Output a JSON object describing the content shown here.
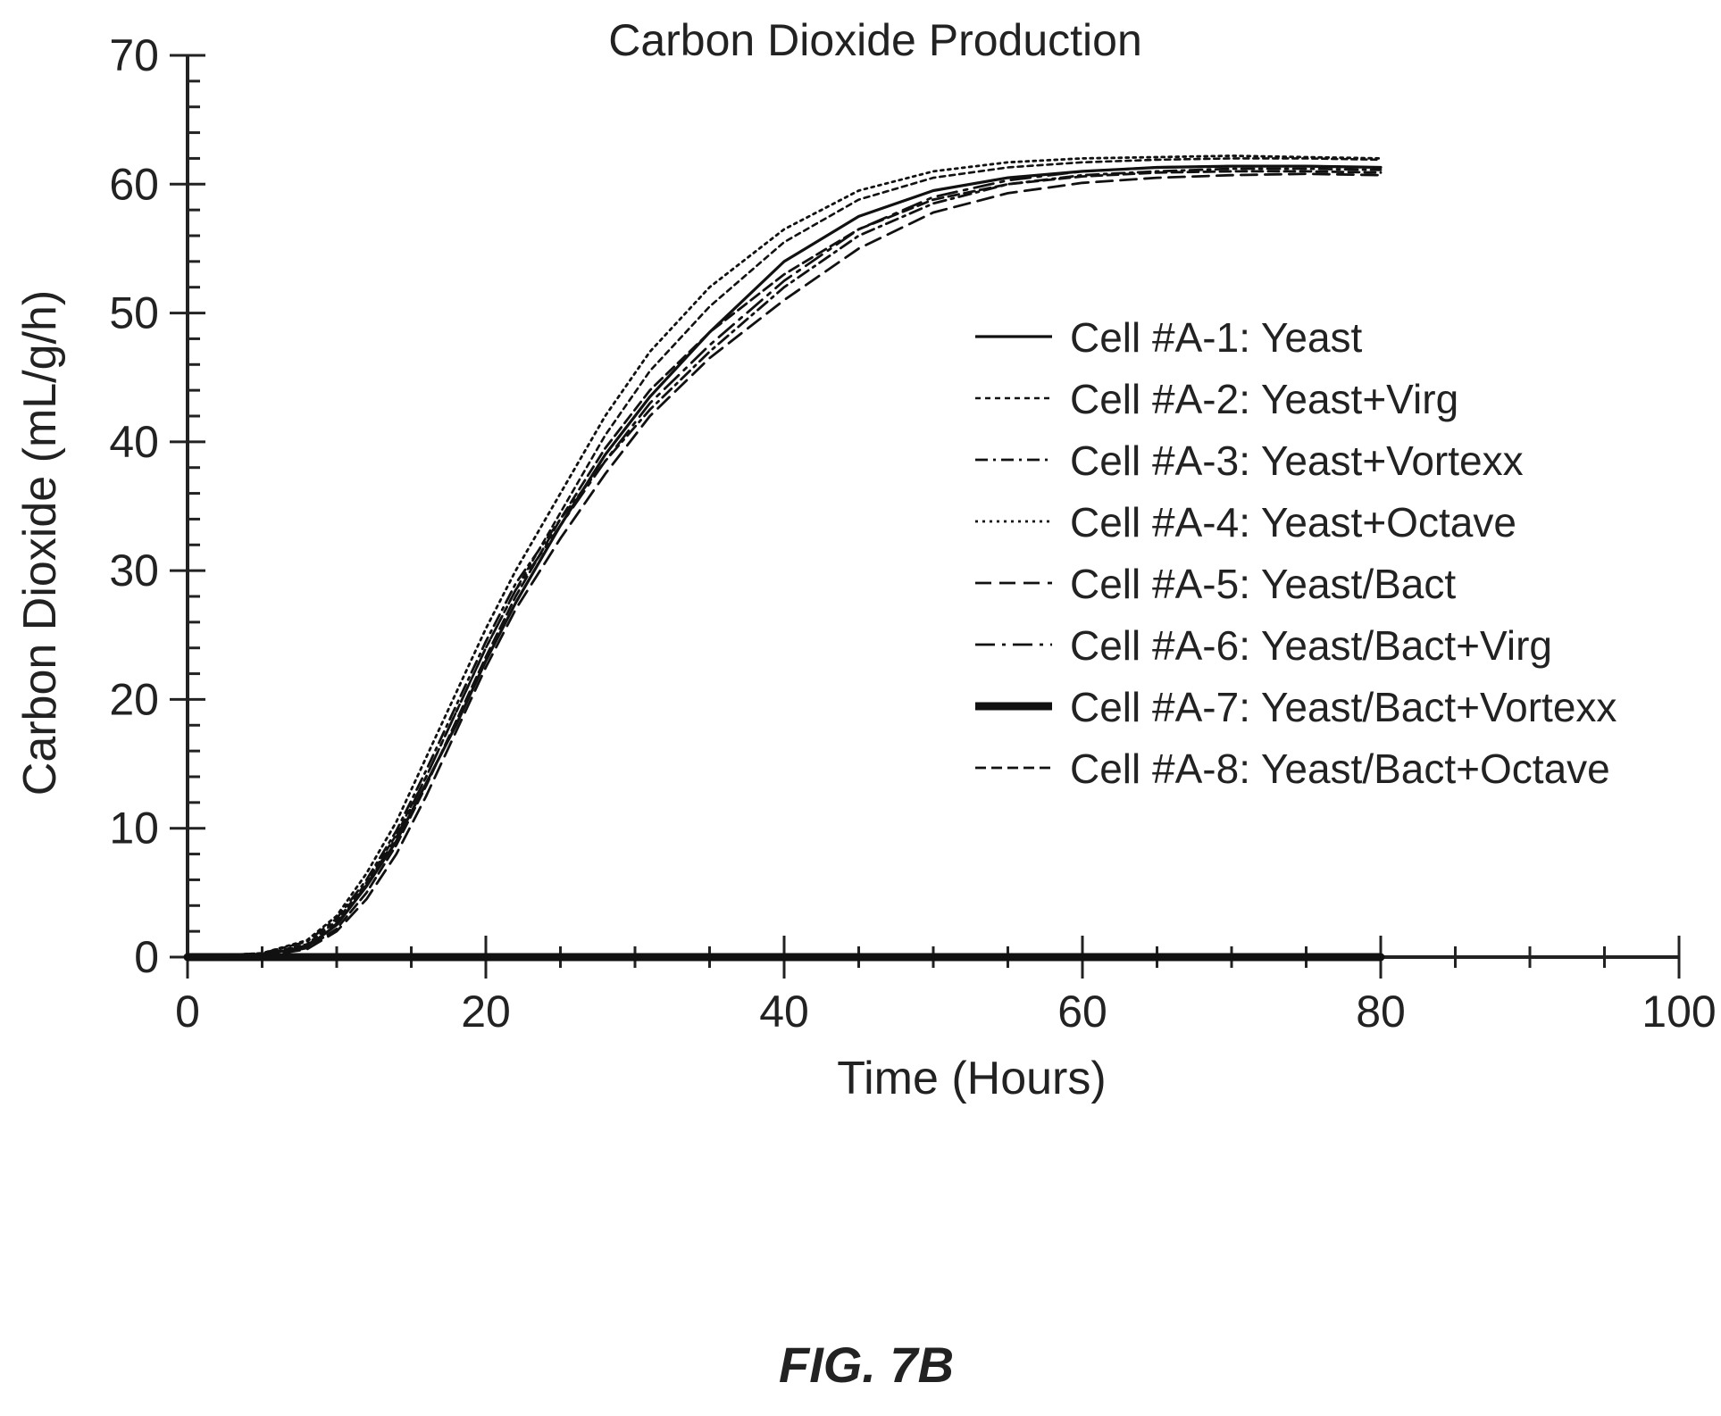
{
  "figure_label": "FIG. 7B",
  "chart_data": {
    "type": "line",
    "title": "Carbon Dioxide Production",
    "xlabel": "Time (Hours)",
    "ylabel": "Carbon Dioxide (mL/g/h)",
    "xlim": [
      0,
      100
    ],
    "ylim": [
      0,
      70
    ],
    "x_ticks": [
      "0",
      "20",
      "40",
      "60",
      "80",
      "100"
    ],
    "y_ticks": [
      "0",
      "10",
      "20",
      "30",
      "40",
      "50",
      "60",
      "70"
    ],
    "grid": false,
    "legend_position": "right",
    "series": [
      {
        "name": "Cell #A-1: Yeast",
        "style": "solid",
        "points": [
          [
            0,
            0
          ],
          [
            5,
            0.2
          ],
          [
            8,
            0.8
          ],
          [
            10,
            2.5
          ],
          [
            12,
            5.5
          ],
          [
            14,
            9
          ],
          [
            16,
            13.5
          ],
          [
            18,
            18
          ],
          [
            20,
            23
          ],
          [
            22,
            27.5
          ],
          [
            25,
            33.5
          ],
          [
            28,
            39
          ],
          [
            31,
            43.5
          ],
          [
            35,
            48.5
          ],
          [
            40,
            54
          ],
          [
            45,
            57.5
          ],
          [
            50,
            59.5
          ],
          [
            55,
            60.5
          ],
          [
            60,
            61
          ],
          [
            65,
            61.3
          ],
          [
            70,
            61.4
          ],
          [
            75,
            61.4
          ],
          [
            80,
            61.3
          ]
        ]
      },
      {
        "name": "Cell #A-2: Yeast+Virg",
        "style": "dash-fine",
        "points": [
          [
            0,
            0
          ],
          [
            5,
            0.2
          ],
          [
            8,
            1.0
          ],
          [
            10,
            2.8
          ],
          [
            12,
            5.8
          ],
          [
            14,
            9.5
          ],
          [
            16,
            14
          ],
          [
            18,
            19
          ],
          [
            20,
            24
          ],
          [
            22,
            28.5
          ],
          [
            25,
            34.5
          ],
          [
            28,
            40.5
          ],
          [
            31,
            45.5
          ],
          [
            35,
            50.5
          ],
          [
            40,
            55.5
          ],
          [
            45,
            58.8
          ],
          [
            50,
            60.5
          ],
          [
            55,
            61.3
          ],
          [
            60,
            61.7
          ],
          [
            65,
            61.9
          ],
          [
            70,
            62
          ],
          [
            75,
            62
          ],
          [
            80,
            61.9
          ]
        ]
      },
      {
        "name": "Cell #A-3: Yeast+Vortexx",
        "style": "dash-dot",
        "points": [
          [
            0,
            0
          ],
          [
            5,
            0.3
          ],
          [
            8,
            1.2
          ],
          [
            10,
            3
          ],
          [
            12,
            6
          ],
          [
            14,
            9.8
          ],
          [
            16,
            14.5
          ],
          [
            18,
            19.5
          ],
          [
            20,
            24.5
          ],
          [
            22,
            29
          ],
          [
            25,
            34
          ],
          [
            28,
            38.5
          ],
          [
            31,
            42.5
          ],
          [
            35,
            47
          ],
          [
            40,
            52
          ],
          [
            45,
            56
          ],
          [
            50,
            58.5
          ],
          [
            55,
            60
          ],
          [
            60,
            60.7
          ],
          [
            65,
            61
          ],
          [
            70,
            61.2
          ],
          [
            75,
            61.2
          ],
          [
            80,
            61.1
          ]
        ]
      },
      {
        "name": "Cell #A-4: Yeast+Octave",
        "style": "dotted",
        "points": [
          [
            0,
            0
          ],
          [
            5,
            0.3
          ],
          [
            8,
            1.3
          ],
          [
            10,
            3.2
          ],
          [
            12,
            6.5
          ],
          [
            14,
            10.5
          ],
          [
            16,
            15.5
          ],
          [
            18,
            20.5
          ],
          [
            20,
            25.5
          ],
          [
            22,
            30
          ],
          [
            25,
            36
          ],
          [
            28,
            42
          ],
          [
            31,
            47
          ],
          [
            35,
            52
          ],
          [
            40,
            56.5
          ],
          [
            45,
            59.5
          ],
          [
            50,
            61
          ],
          [
            55,
            61.7
          ],
          [
            60,
            62
          ],
          [
            65,
            62.1
          ],
          [
            70,
            62.2
          ],
          [
            75,
            62.1
          ],
          [
            80,
            62
          ]
        ]
      },
      {
        "name": "Cell #A-5: Yeast/Bact",
        "style": "dash-long",
        "points": [
          [
            0,
            0
          ],
          [
            5,
            0.1
          ],
          [
            8,
            0.6
          ],
          [
            10,
            2
          ],
          [
            12,
            4.5
          ],
          [
            14,
            8
          ],
          [
            16,
            12.5
          ],
          [
            18,
            17.5
          ],
          [
            20,
            22.5
          ],
          [
            22,
            27
          ],
          [
            25,
            32.5
          ],
          [
            28,
            37.5
          ],
          [
            31,
            42
          ],
          [
            35,
            46.5
          ],
          [
            40,
            51
          ],
          [
            45,
            55
          ],
          [
            50,
            57.8
          ],
          [
            55,
            59.3
          ],
          [
            60,
            60.1
          ],
          [
            65,
            60.5
          ],
          [
            70,
            60.7
          ],
          [
            75,
            60.8
          ],
          [
            80,
            60.7
          ]
        ]
      },
      {
        "name": "Cell #A-6: Yeast/Bact+Virg",
        "style": "dash-dot-long",
        "points": [
          [
            0,
            0
          ],
          [
            5,
            0.2
          ],
          [
            8,
            0.9
          ],
          [
            10,
            2.6
          ],
          [
            12,
            5.6
          ],
          [
            14,
            9.3
          ],
          [
            16,
            14
          ],
          [
            18,
            19
          ],
          [
            20,
            24
          ],
          [
            22,
            28.5
          ],
          [
            25,
            33.5
          ],
          [
            28,
            38.5
          ],
          [
            31,
            43
          ],
          [
            35,
            47.5
          ],
          [
            40,
            52.5
          ],
          [
            45,
            56.5
          ],
          [
            50,
            59
          ],
          [
            55,
            60.3
          ],
          [
            60,
            61
          ],
          [
            65,
            61.3
          ],
          [
            70,
            61.4
          ],
          [
            75,
            61.4
          ],
          [
            80,
            61.3
          ]
        ]
      },
      {
        "name": "Cell #A-7: Yeast/Bact+Vortexx",
        "style": "thick",
        "points": [
          [
            0,
            0
          ],
          [
            80,
            0
          ]
        ]
      },
      {
        "name": "Cell #A-8: Yeast/Bact+Octave",
        "style": "dash-medium",
        "points": [
          [
            0,
            0
          ],
          [
            5,
            0.1
          ],
          [
            8,
            0.7
          ],
          [
            10,
            2.2
          ],
          [
            12,
            5
          ],
          [
            14,
            8.7
          ],
          [
            16,
            13.3
          ],
          [
            18,
            18.3
          ],
          [
            20,
            23.3
          ],
          [
            22,
            28
          ],
          [
            25,
            34
          ],
          [
            28,
            39.5
          ],
          [
            31,
            44
          ],
          [
            35,
            48.5
          ],
          [
            40,
            53
          ],
          [
            45,
            56.5
          ],
          [
            50,
            58.8
          ],
          [
            55,
            60
          ],
          [
            60,
            60.6
          ],
          [
            65,
            60.9
          ],
          [
            70,
            61
          ],
          [
            75,
            61
          ],
          [
            80,
            60.9
          ]
        ]
      }
    ]
  }
}
